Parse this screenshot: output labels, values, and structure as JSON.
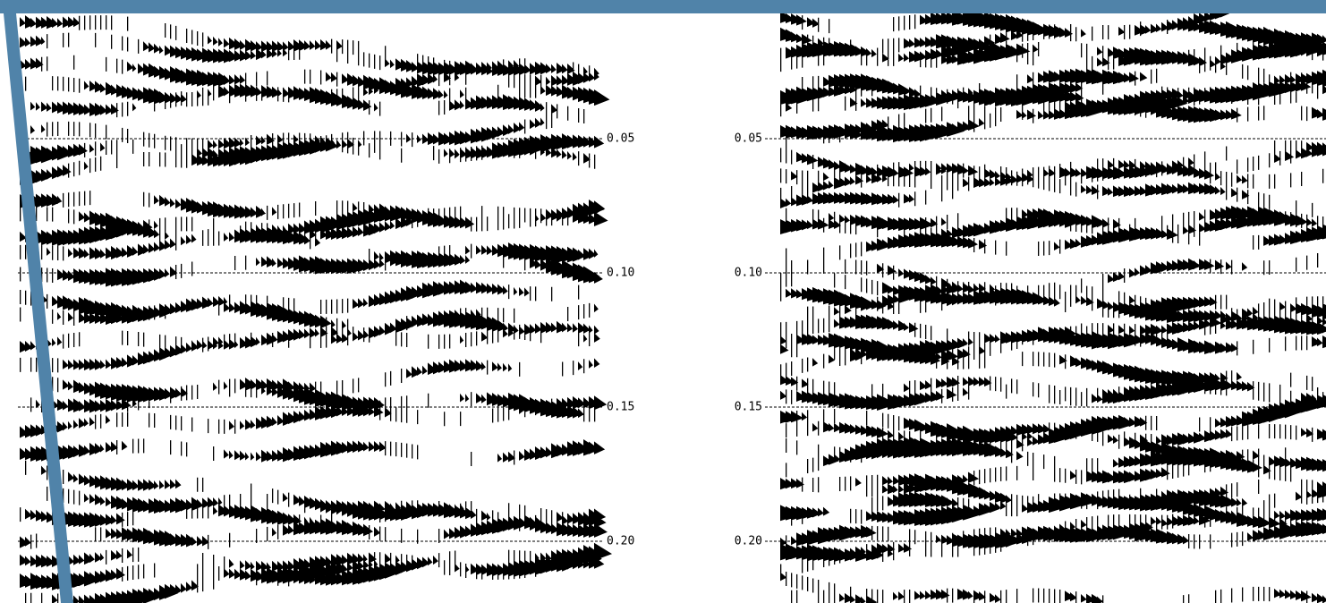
{
  "left_panel": {
    "time_labels": [
      "0.05",
      "0.10",
      "0.15",
      "0.20"
    ]
  },
  "right_panel": {
    "time_labels": [
      "0.05",
      "0.10",
      "0.15",
      "0.20"
    ]
  }
}
